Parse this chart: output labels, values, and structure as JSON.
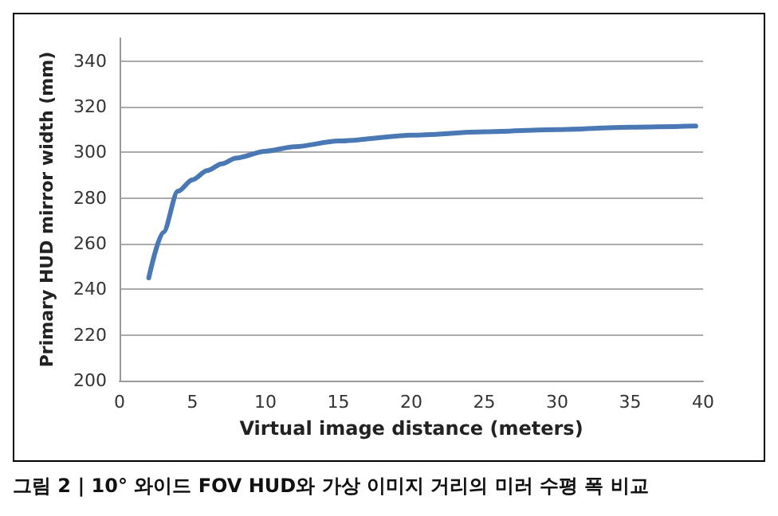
{
  "chart_data": {
    "type": "line",
    "xlabel": "Virtual image distance (meters)",
    "ylabel": "Primary HUD mirror width (mm)",
    "annotations": [
      "그림 2 | 10° 와이드 FOV HUD와 가상 이미지 거리의 미러 수평 폭 비교"
    ],
    "x": [
      2,
      3,
      4,
      5,
      6,
      7,
      8,
      10,
      12,
      15,
      20,
      25,
      30,
      35,
      39.5
    ],
    "series": [
      {
        "color": "#4a78b5",
        "values": [
          245,
          265,
          283,
          288,
          292,
          295,
          297.5,
          300.5,
          302.5,
          305,
          307.5,
          309,
          310,
          311,
          311.5
        ]
      }
    ],
    "xlim": [
      0,
      40
    ],
    "xticks": [
      0,
      5,
      10,
      15,
      20,
      25,
      30,
      35,
      40
    ],
    "ylim": [
      200,
      350
    ],
    "yticks": [
      200,
      220,
      240,
      260,
      280,
      300,
      320,
      340
    ],
    "grid": "y",
    "marker": "none",
    "line_style": "solid"
  }
}
